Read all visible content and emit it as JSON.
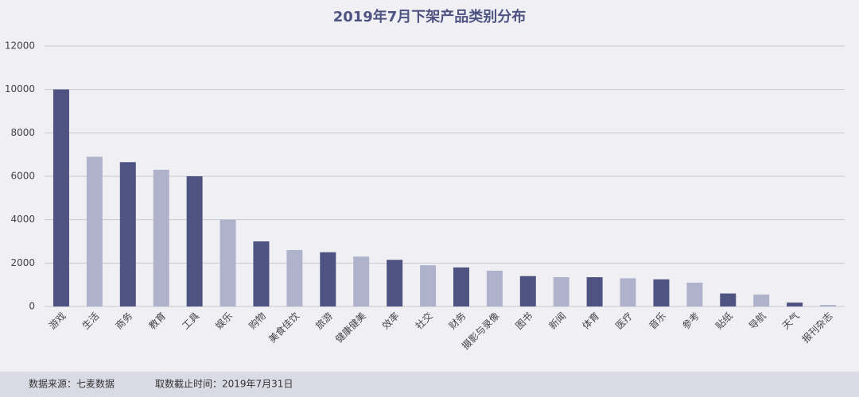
{
  "chart_data": {
    "type": "bar",
    "title": "2019年7月下架产品类别分布",
    "categories": [
      "游戏",
      "生活",
      "商务",
      "教育",
      "工具",
      "娱乐",
      "购物",
      "美食佳饮",
      "旅游",
      "健康健美",
      "效率",
      "社交",
      "财务",
      "摄影与录像",
      "图书",
      "新闻",
      "体育",
      "医疗",
      "音乐",
      "参考",
      "贴纸",
      "导航",
      "天气",
      "报刊杂志"
    ],
    "values": [
      10000,
      6900,
      6650,
      6300,
      6000,
      4000,
      3000,
      2600,
      2500,
      2300,
      2150,
      1900,
      1800,
      1650,
      1400,
      1350,
      1350,
      1300,
      1250,
      1100,
      600,
      550,
      180,
      70
    ],
    "colors": [
      "#4e5382",
      "#aeb3cb"
    ],
    "ylim": [
      0,
      12000
    ],
    "yticks": [
      0,
      2000,
      4000,
      6000,
      8000,
      10000,
      12000
    ],
    "grid": true
  },
  "footer": {
    "source": "数据来源：七麦数据",
    "cutoff": "取数截止时间：2019年7月31日"
  }
}
